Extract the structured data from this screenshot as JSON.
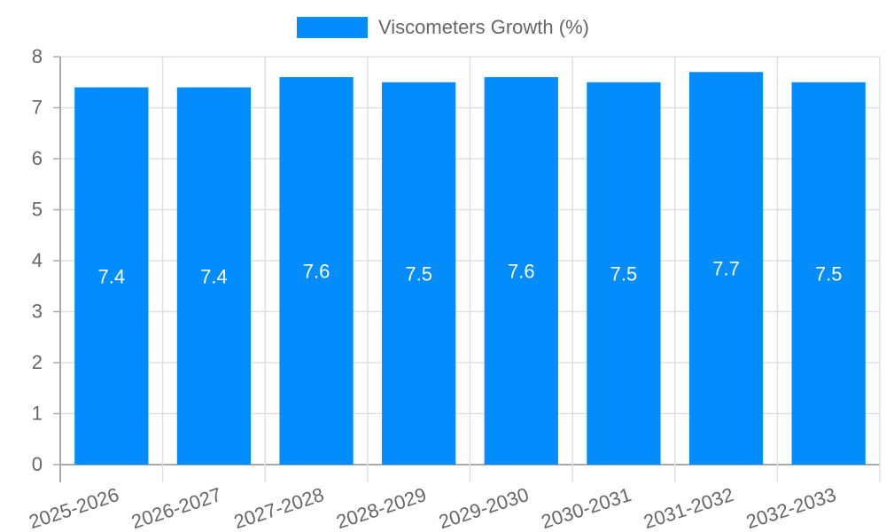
{
  "legend": {
    "label": "Viscometers Growth (%)",
    "color": "#038cfc"
  },
  "chart_data": {
    "type": "bar",
    "title": "",
    "xlabel": "",
    "ylabel": "",
    "categories": [
      "2025-2026",
      "2026-2027",
      "2027-2028",
      "2028-2029",
      "2029-2030",
      "2030-2031",
      "2031-2032",
      "2032-2033"
    ],
    "series": [
      {
        "name": "Viscometers Growth (%)",
        "color": "#038cfc",
        "values": [
          7.4,
          7.4,
          7.6,
          7.5,
          7.6,
          7.5,
          7.7,
          7.5
        ]
      }
    ],
    "ylim": [
      0,
      8
    ],
    "yticks": [
      0,
      1,
      2,
      3,
      4,
      5,
      6,
      7,
      8
    ],
    "grid": true,
    "legend_position": "top",
    "data_labels": true
  }
}
